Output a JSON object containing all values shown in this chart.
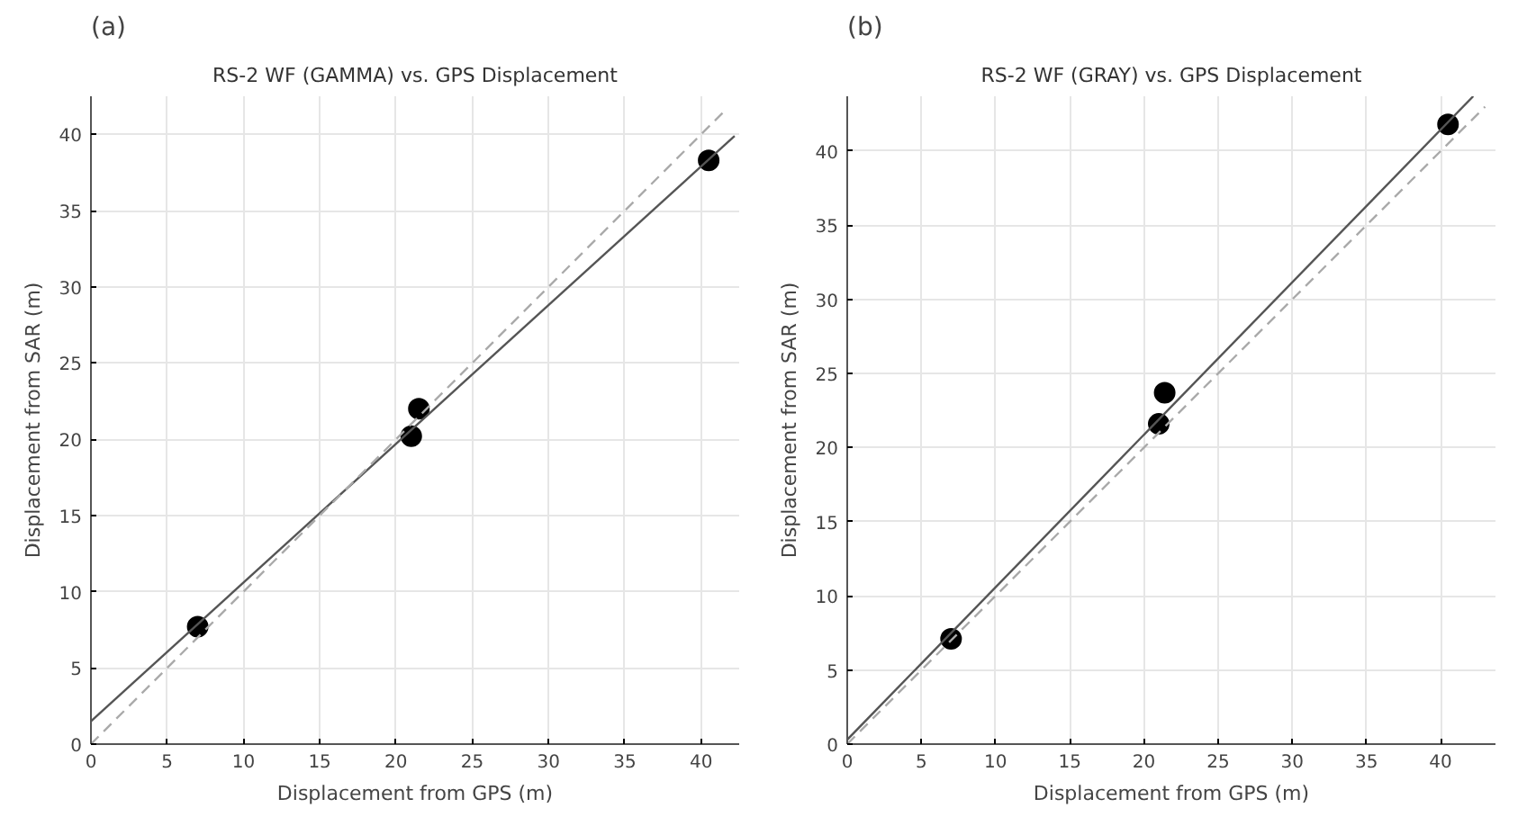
{
  "chart_data": [
    {
      "type": "scatter",
      "title": "RS-2 WF (GAMMA) vs. GPS Displacement",
      "xlabel": "Displacement from GPS (m)",
      "ylabel": "Displacement from SAR (m)",
      "annotations": [
        "(a)"
      ],
      "xlim": [
        0,
        42.5
      ],
      "ylim": [
        0,
        42.5
      ],
      "xticks": [
        0,
        5,
        10,
        15,
        20,
        25,
        30,
        35,
        40
      ],
      "yticks": [
        0,
        5,
        10,
        15,
        20,
        25,
        30,
        35,
        40
      ],
      "grid": true,
      "marker": "circle",
      "series": [
        {
          "color": "#000000",
          "x": [
            7.0,
            21.0,
            21.5,
            40.5
          ],
          "values": [
            7.7,
            20.2,
            22.0,
            38.3
          ]
        },
        {
          "type": "line",
          "color": "#555555",
          "line_style": "solid",
          "marker": "none",
          "x": [
            0,
            42.2
          ],
          "values": [
            1.5,
            39.9
          ]
        },
        {
          "type": "line",
          "color": "#aaaaaa",
          "line_style": "dashed",
          "marker": "none",
          "x": [
            0,
            41.7
          ],
          "values": [
            0,
            41.7
          ]
        }
      ]
    },
    {
      "type": "scatter",
      "title": "RS-2 WF (GRAY) vs. GPS Displacement",
      "xlabel": "Displacement from GPS (m)",
      "ylabel": "Displacement from SAR (m)",
      "annotations": [
        "(b)"
      ],
      "xlim": [
        0,
        43.7
      ],
      "ylim": [
        0,
        43.7
      ],
      "xticks": [
        0,
        5,
        10,
        15,
        20,
        25,
        30,
        35,
        40
      ],
      "yticks": [
        0,
        5,
        10,
        15,
        20,
        25,
        30,
        35,
        40
      ],
      "grid": true,
      "marker": "circle",
      "series": [
        {
          "color": "#000000",
          "x": [
            7.0,
            21.0,
            21.4,
            40.5
          ],
          "values": [
            7.1,
            21.6,
            23.7,
            41.8
          ]
        },
        {
          "type": "line",
          "color": "#555555",
          "line_style": "solid",
          "marker": "none",
          "x": [
            0,
            42.2
          ],
          "values": [
            0.3,
            43.7
          ]
        },
        {
          "type": "line",
          "color": "#aaaaaa",
          "line_style": "dashed",
          "marker": "none",
          "x": [
            0,
            43.0
          ],
          "values": [
            0,
            43.0
          ]
        }
      ]
    }
  ]
}
